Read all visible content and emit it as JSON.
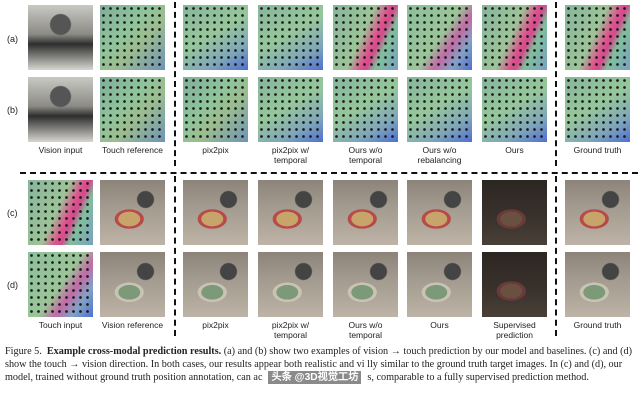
{
  "row_labels": [
    "(a)",
    "(b)",
    "(c)",
    "(d)"
  ],
  "top_columns": [
    "Vision input",
    "Touch reference",
    "pix2pix",
    "pix2pix w/\ntemporal",
    "Ours w/o\ntemporal",
    "Ours w/o\nrebalancing",
    "Ours",
    "Ground truth"
  ],
  "bottom_columns": [
    "Touch input",
    "Vision reference",
    "pix2pix",
    "pix2pix w/\ntemporal",
    "Ours w/o\ntemporal",
    "Ours",
    "Supervised\nprediction",
    "Ground truth"
  ],
  "caption": {
    "figure_label": "Figure 5.",
    "title": "Example cross-modal prediction results.",
    "text_1": " (a) and (b) show two examples of vision → touch prediction by our model and baselines. (c) and (d) show the touch → vision direction. In both cases, our results appear both realistic and vi",
    "text_2": "lly similar to the ground truth target images. In (c) and (d), our model, trained without ground truth position annotation, can ac",
    "text_3": "s, comparable to a fully supervised prediction method."
  },
  "watermark": "头条 @3D视觉工坊"
}
